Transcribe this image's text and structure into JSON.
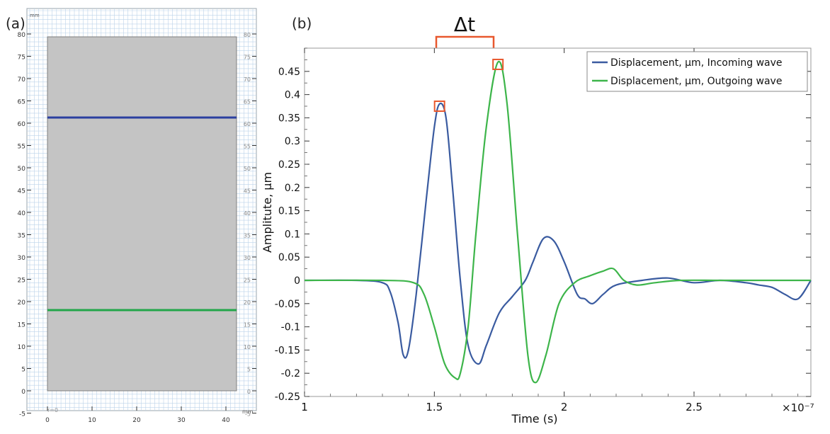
{
  "panel_a": {
    "label": "(a)",
    "unit_top": "mm",
    "unit_right": "mm",
    "corner_label": "r=0",
    "x_ticks": [
      "0",
      "10",
      "20",
      "30",
      "40"
    ],
    "y_ticks": [
      "80",
      "75",
      "70",
      "65",
      "60",
      "55",
      "50",
      "45",
      "40",
      "35",
      "30",
      "25",
      "20",
      "15",
      "10",
      "5",
      "0",
      "-5"
    ],
    "domain_fill": "#c4c4c4",
    "grid_color": "#bcd3ea",
    "line_upper_color": "#2b3fa0",
    "line_lower_color": "#22a64a"
  },
  "panel_b": {
    "label": "(b)",
    "delta_label": "Δt",
    "marker_color": "#e8582e"
  },
  "chart_data": {
    "type": "line",
    "xlabel": "Time (s)",
    "ylabel": "Amplitute, µm",
    "x_multiplier": "×10⁻⁷",
    "xlim": [
      1.0,
      2.95
    ],
    "ylim": [
      -0.25,
      0.5
    ],
    "x_ticks": [
      1,
      1.5,
      2,
      2.5
    ],
    "x_tick_labels": [
      "1",
      "1.5",
      "2",
      "2.5"
    ],
    "y_ticks": [
      -0.25,
      -0.2,
      -0.15,
      -0.1,
      -0.05,
      0,
      0.05,
      0.1,
      0.15,
      0.2,
      0.25,
      0.3,
      0.35,
      0.4,
      0.45
    ],
    "y_tick_labels": [
      "-0.25",
      "-0.2",
      "-0.15",
      "-0.1",
      "-0.05",
      "0",
      "0.05",
      "0.1",
      "0.15",
      "0.2",
      "0.25",
      "0.3",
      "0.35",
      "0.4",
      "0.45"
    ],
    "legend_position": "top-right",
    "series": [
      {
        "name": "Displacement, µm, Incoming wave",
        "color": "#3a5ba0",
        "x": [
          1.0,
          1.2,
          1.3,
          1.33,
          1.36,
          1.38,
          1.4,
          1.43,
          1.47,
          1.5,
          1.52,
          1.545,
          1.57,
          1.6,
          1.63,
          1.67,
          1.7,
          1.75,
          1.8,
          1.85,
          1.88,
          1.92,
          1.96,
          2.0,
          2.05,
          2.08,
          2.11,
          2.15,
          2.2,
          2.3,
          2.4,
          2.5,
          2.6,
          2.7,
          2.75,
          2.8,
          2.85,
          2.9,
          2.95
        ],
        "y": [
          0.0,
          0.0,
          -0.005,
          -0.025,
          -0.09,
          -0.16,
          -0.15,
          -0.03,
          0.18,
          0.33,
          0.38,
          0.35,
          0.2,
          0.0,
          -0.14,
          -0.18,
          -0.14,
          -0.07,
          -0.035,
          0.0,
          0.04,
          0.09,
          0.085,
          0.04,
          -0.03,
          -0.04,
          -0.05,
          -0.03,
          -0.01,
          0.0,
          0.005,
          -0.005,
          0.0,
          -0.005,
          -0.01,
          -0.015,
          -0.03,
          -0.04,
          0.0
        ]
      },
      {
        "name": "Displacement, µm, Outgoing wave",
        "color": "#3db54a",
        "x": [
          1.0,
          1.3,
          1.42,
          1.46,
          1.5,
          1.54,
          1.58,
          1.6,
          1.63,
          1.66,
          1.7,
          1.745,
          1.78,
          1.82,
          1.86,
          1.89,
          1.93,
          1.98,
          2.04,
          2.1,
          2.15,
          2.19,
          2.23,
          2.28,
          2.35,
          2.45,
          2.6,
          2.8,
          2.95
        ],
        "y": [
          0.0,
          0.0,
          -0.005,
          -0.03,
          -0.1,
          -0.18,
          -0.21,
          -0.2,
          -0.1,
          0.1,
          0.33,
          0.47,
          0.38,
          0.1,
          -0.16,
          -0.22,
          -0.16,
          -0.05,
          -0.005,
          0.01,
          0.02,
          0.025,
          0.0,
          -0.01,
          -0.005,
          0.0,
          0.0,
          0.0,
          0.0
        ]
      }
    ],
    "annotations": [
      {
        "type": "peak-marker",
        "x": 1.52,
        "y": 0.375
      },
      {
        "type": "peak-marker",
        "x": 1.745,
        "y": 0.465
      }
    ]
  }
}
